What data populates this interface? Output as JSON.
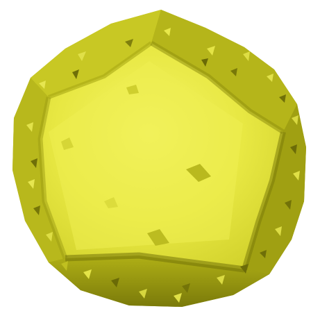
{
  "scene": {
    "subject_icon": "dodecahedron-icon",
    "colors": {
      "background": "#ffffff",
      "face_highlight": "#f2f25a",
      "face_main": "#e4e43a",
      "face_mid": "#c8c820",
      "face_shadow": "#9a9a10",
      "face_dark": "#6e6e08"
    }
  }
}
